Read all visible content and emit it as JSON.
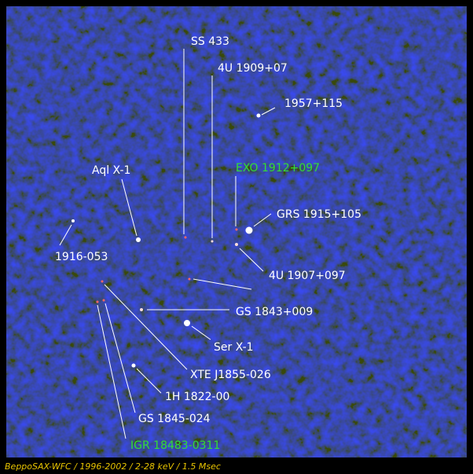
{
  "labels": [
    "SS 433",
    "4U 1909+07",
    "1957+115",
    "Aql X-1",
    "EXO 1912+097",
    "GRS 1915+105",
    "1916-053",
    "4U 1907+097",
    "GS 1843+009",
    "Ser X-1",
    "XTE J1855-026",
    "1H 1822-00",
    "GS 1845-024",
    "IGR 18483-0311"
  ],
  "caption": "BeppoSAX-WFC / 1996-2002 / 2-28 keV / 1.5 Msec"
}
